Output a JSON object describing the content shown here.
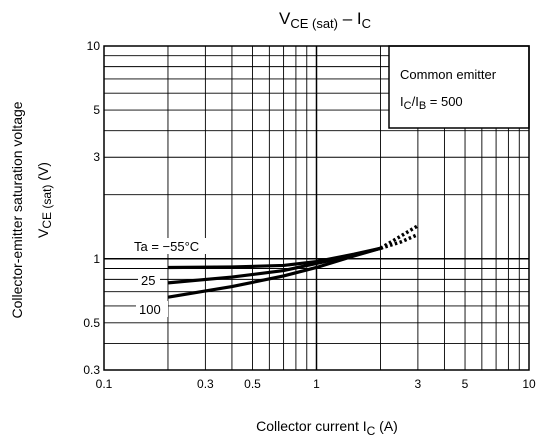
{
  "chart_data": {
    "type": "line",
    "title": "V",
    "title_sub": "CE (sat)",
    "title_rest": " – I",
    "title_sub2": "C",
    "xlabel": "Collector current   I",
    "xlabel_sub": "C",
    "xlabel_unit": "   (A)",
    "ylabel_line1": "Collector-emitter saturation voltage",
    "ylabel_line2": "V",
    "ylabel_line2_sub": "CE (sat)",
    "ylabel_line2_unit": "   (V)",
    "x_scale": "log",
    "y_scale": "log",
    "xlim": [
      0.1,
      10
    ],
    "ylim": [
      0.3,
      10
    ],
    "x_tick_labels": [
      "0.1",
      "0.3",
      "0.5",
      "1",
      "3",
      "5",
      "10"
    ],
    "x_tick_values": [
      0.1,
      0.3,
      0.5,
      1,
      3,
      5,
      10
    ],
    "y_tick_labels": [
      "0.3",
      "0.5",
      "1",
      "3",
      "5",
      "10"
    ],
    "y_tick_values": [
      0.3,
      0.5,
      1,
      3,
      5,
      10
    ],
    "grid": true,
    "legend_box": {
      "line1": "Common emitter",
      "line2_a": "I",
      "line2_sub1": "C",
      "line2_b": "/I",
      "line2_sub2": "B",
      "line2_c": " = 500",
      "placement": "top-right"
    },
    "series": [
      {
        "name": "Ta = −55°C",
        "x": [
          0.2,
          0.4,
          0.7,
          1.0,
          1.5,
          2.0
        ],
        "y": [
          0.91,
          0.915,
          0.93,
          0.97,
          1.05,
          1.12
        ]
      },
      {
        "name": "25",
        "x": [
          0.2,
          0.4,
          0.7,
          1.0,
          1.5,
          2.0
        ],
        "y": [
          0.77,
          0.82,
          0.88,
          0.95,
          1.04,
          1.12
        ]
      },
      {
        "name": "100",
        "x": [
          0.2,
          0.4,
          0.7,
          1.0,
          1.5,
          2.0
        ],
        "y": [
          0.66,
          0.74,
          0.83,
          0.91,
          1.03,
          1.12
        ]
      }
    ],
    "dotted_extension": {
      "x": [
        2.0,
        2.5,
        3.0
      ],
      "y_upper": [
        1.12,
        1.28,
        1.43
      ],
      "y_lower": [
        1.12,
        1.2,
        1.3
      ]
    }
  }
}
